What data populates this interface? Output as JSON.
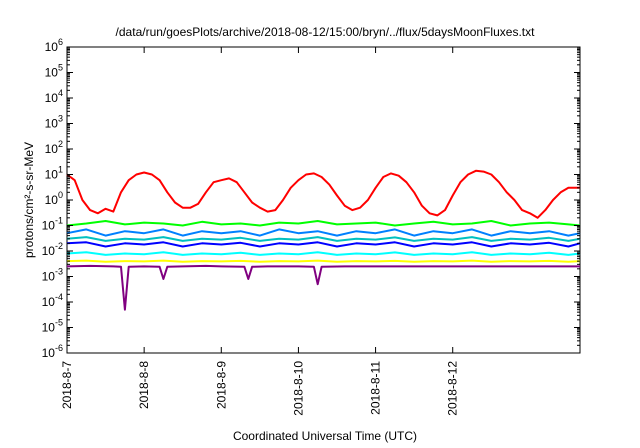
{
  "chart_data": {
    "type": "line",
    "title": "/data/run/goesPlots/archive/2018-08-12/15:00/bryn/../flux/5daysMoonFluxes.txt",
    "xlabel": "Coordinated Universal Time (UTC)",
    "ylabel": "protons/cm²-s-sr-MeV",
    "yscale": "log",
    "ylim": [
      1e-06,
      1000000.0
    ],
    "xlim": [
      0,
      6.65
    ],
    "x_ticks": [
      {
        "x": 0,
        "label": "2018-8-7"
      },
      {
        "x": 1,
        "label": "2018-8-8"
      },
      {
        "x": 2,
        "label": "2018-8-9"
      },
      {
        "x": 3,
        "label": "2018-8-10"
      },
      {
        "x": 4,
        "label": "2018-8-11"
      },
      {
        "x": 5,
        "label": "2018-8-12"
      }
    ],
    "y_ticks": [
      {
        "exp": "6",
        "value": 1000000.0
      },
      {
        "exp": "5",
        "value": 100000.0
      },
      {
        "exp": "4",
        "value": 10000.0
      },
      {
        "exp": "3",
        "value": 1000.0
      },
      {
        "exp": "2",
        "value": 100.0
      },
      {
        "exp": "1",
        "value": 10.0
      },
      {
        "exp": "0",
        "value": 1
      },
      {
        "exp": "-1",
        "value": 0.1
      },
      {
        "exp": "-2",
        "value": 0.01
      },
      {
        "exp": "-3",
        "value": 0.001
      },
      {
        "exp": "-4",
        "value": 0.0001
      },
      {
        "exp": "-5",
        "value": 1e-05
      },
      {
        "exp": "-6",
        "value": 1e-06
      }
    ],
    "grid": false,
    "series": [
      {
        "color": "#ff0000",
        "x": [
          0,
          0.1,
          0.2,
          0.3,
          0.4,
          0.5,
          0.6,
          0.7,
          0.8,
          0.9,
          1.0,
          1.1,
          1.2,
          1.3,
          1.4,
          1.5,
          1.6,
          1.7,
          1.8,
          1.9,
          2.0,
          2.1,
          2.2,
          2.3,
          2.4,
          2.5,
          2.6,
          2.7,
          2.8,
          2.9,
          3.0,
          3.1,
          3.2,
          3.3,
          3.4,
          3.5,
          3.6,
          3.7,
          3.8,
          3.9,
          4.0,
          4.1,
          4.2,
          4.3,
          4.4,
          4.5,
          4.6,
          4.7,
          4.8,
          4.9,
          5.0,
          5.1,
          5.2,
          5.3,
          5.4,
          5.5,
          5.6,
          5.7,
          5.8,
          5.9,
          6.0,
          6.1,
          6.2,
          6.3,
          6.4,
          6.5,
          6.65
        ],
        "y": [
          10,
          6,
          1.0,
          0.4,
          0.3,
          0.45,
          0.35,
          2,
          6,
          10,
          12,
          10,
          6,
          2,
          0.8,
          0.5,
          0.5,
          0.7,
          2,
          5,
          6,
          7,
          5,
          2,
          0.8,
          0.5,
          0.35,
          0.4,
          1.0,
          3,
          6,
          10,
          11,
          8,
          4,
          1.5,
          0.6,
          0.4,
          0.5,
          1.0,
          3,
          8,
          11,
          9,
          5,
          2,
          0.6,
          0.3,
          0.25,
          0.4,
          1.5,
          5,
          10,
          14,
          13,
          10,
          5,
          2,
          1,
          0.4,
          0.3,
          0.2,
          0.4,
          1,
          2,
          3,
          3
        ]
      },
      {
        "color": "#00ff00",
        "x": [
          0,
          0.25,
          0.5,
          0.75,
          1.0,
          1.25,
          1.5,
          1.75,
          2.0,
          2.25,
          2.5,
          2.75,
          3.0,
          3.25,
          3.5,
          3.75,
          4.0,
          4.25,
          4.5,
          4.75,
          5.0,
          5.25,
          5.5,
          5.75,
          6.0,
          6.25,
          6.5,
          6.65
        ],
        "y": [
          0.1,
          0.12,
          0.15,
          0.11,
          0.13,
          0.12,
          0.1,
          0.14,
          0.11,
          0.12,
          0.1,
          0.13,
          0.12,
          0.15,
          0.11,
          0.12,
          0.13,
          0.1,
          0.12,
          0.14,
          0.11,
          0.12,
          0.15,
          0.1,
          0.12,
          0.13,
          0.11,
          0.1
        ]
      },
      {
        "color": "#0080ff",
        "x": [
          0,
          0.25,
          0.5,
          0.75,
          1.0,
          1.25,
          1.5,
          1.75,
          2.0,
          2.25,
          2.5,
          2.75,
          3.0,
          3.25,
          3.5,
          3.75,
          4.0,
          4.25,
          4.5,
          4.75,
          5.0,
          5.25,
          5.5,
          5.75,
          6.0,
          6.25,
          6.5,
          6.65
        ],
        "y": [
          0.05,
          0.07,
          0.04,
          0.06,
          0.05,
          0.07,
          0.04,
          0.06,
          0.05,
          0.06,
          0.04,
          0.07,
          0.05,
          0.06,
          0.04,
          0.06,
          0.05,
          0.07,
          0.04,
          0.06,
          0.05,
          0.07,
          0.04,
          0.06,
          0.05,
          0.06,
          0.04,
          0.05
        ]
      },
      {
        "color": "#00c0c0",
        "x": [
          0,
          0.25,
          0.5,
          0.75,
          1.0,
          1.25,
          1.5,
          1.75,
          2.0,
          2.25,
          2.5,
          2.75,
          3.0,
          3.25,
          3.5,
          3.75,
          4.0,
          4.25,
          4.5,
          4.75,
          5.0,
          5.25,
          5.5,
          5.75,
          6.0,
          6.25,
          6.5,
          6.65
        ],
        "y": [
          0.03,
          0.035,
          0.025,
          0.03,
          0.028,
          0.035,
          0.025,
          0.03,
          0.028,
          0.033,
          0.025,
          0.03,
          0.028,
          0.035,
          0.025,
          0.03,
          0.028,
          0.034,
          0.025,
          0.03,
          0.028,
          0.035,
          0.025,
          0.03,
          0.028,
          0.033,
          0.025,
          0.03
        ]
      },
      {
        "color": "#0000ff",
        "x": [
          0,
          0.25,
          0.5,
          0.75,
          1.0,
          1.25,
          1.5,
          1.75,
          2.0,
          2.25,
          2.5,
          2.75,
          3.0,
          3.25,
          3.5,
          3.75,
          4.0,
          4.25,
          4.5,
          4.75,
          5.0,
          5.25,
          5.5,
          5.75,
          6.0,
          6.25,
          6.5,
          6.65
        ],
        "y": [
          0.02,
          0.022,
          0.015,
          0.02,
          0.018,
          0.022,
          0.015,
          0.02,
          0.018,
          0.021,
          0.015,
          0.02,
          0.018,
          0.022,
          0.015,
          0.02,
          0.018,
          0.022,
          0.015,
          0.02,
          0.018,
          0.022,
          0.015,
          0.02,
          0.018,
          0.021,
          0.015,
          0.02
        ]
      },
      {
        "color": "#00ffff",
        "x": [
          0,
          0.25,
          0.5,
          0.75,
          1.0,
          1.25,
          1.5,
          1.75,
          2.0,
          2.25,
          2.5,
          2.75,
          3.0,
          3.25,
          3.5,
          3.75,
          4.0,
          4.25,
          4.5,
          4.75,
          5.0,
          5.25,
          5.5,
          5.75,
          6.0,
          6.25,
          6.5,
          6.65
        ],
        "y": [
          0.008,
          0.009,
          0.007,
          0.008,
          0.0075,
          0.009,
          0.007,
          0.008,
          0.0075,
          0.0085,
          0.007,
          0.008,
          0.0075,
          0.009,
          0.007,
          0.008,
          0.0075,
          0.0088,
          0.007,
          0.008,
          0.0075,
          0.009,
          0.007,
          0.008,
          0.0075,
          0.0085,
          0.007,
          0.008
        ]
      },
      {
        "color": "#ffff00",
        "x": [
          0,
          0.25,
          0.5,
          0.75,
          1.0,
          1.25,
          1.5,
          1.75,
          2.0,
          2.25,
          2.5,
          2.75,
          3.0,
          3.25,
          3.5,
          3.75,
          4.0,
          4.25,
          4.5,
          4.75,
          5.0,
          5.25,
          5.5,
          5.75,
          6.0,
          6.25,
          6.5,
          6.65
        ],
        "y": [
          0.004,
          0.0042,
          0.0038,
          0.004,
          0.0039,
          0.0042,
          0.0038,
          0.004,
          0.0039,
          0.0041,
          0.0038,
          0.004,
          0.0039,
          0.0042,
          0.0038,
          0.004,
          0.0039,
          0.0041,
          0.0038,
          0.004,
          0.0039,
          0.0042,
          0.0038,
          0.004,
          0.0039,
          0.0041,
          0.0038,
          0.004
        ]
      },
      {
        "color": "#800080",
        "x": [
          0,
          0.3,
          0.6,
          0.7,
          0.75,
          0.8,
          1.0,
          1.2,
          1.25,
          1.3,
          1.5,
          1.8,
          2.0,
          2.3,
          2.35,
          2.4,
          2.6,
          3.0,
          3.2,
          3.25,
          3.3,
          3.6,
          4.0,
          4.4,
          4.8,
          5.2,
          5.6,
          6.0,
          6.3,
          6.65
        ],
        "y": [
          0.0025,
          0.0026,
          0.0025,
          0.0024,
          5e-05,
          0.0024,
          0.0025,
          0.0024,
          0.0008,
          0.0024,
          0.0025,
          0.0026,
          0.0025,
          0.0024,
          0.0008,
          0.0024,
          0.0025,
          0.0025,
          0.0024,
          0.0005,
          0.0024,
          0.0025,
          0.0025,
          0.0025,
          0.0025,
          0.0025,
          0.0025,
          0.0025,
          0.0025,
          0.0025
        ]
      }
    ]
  }
}
